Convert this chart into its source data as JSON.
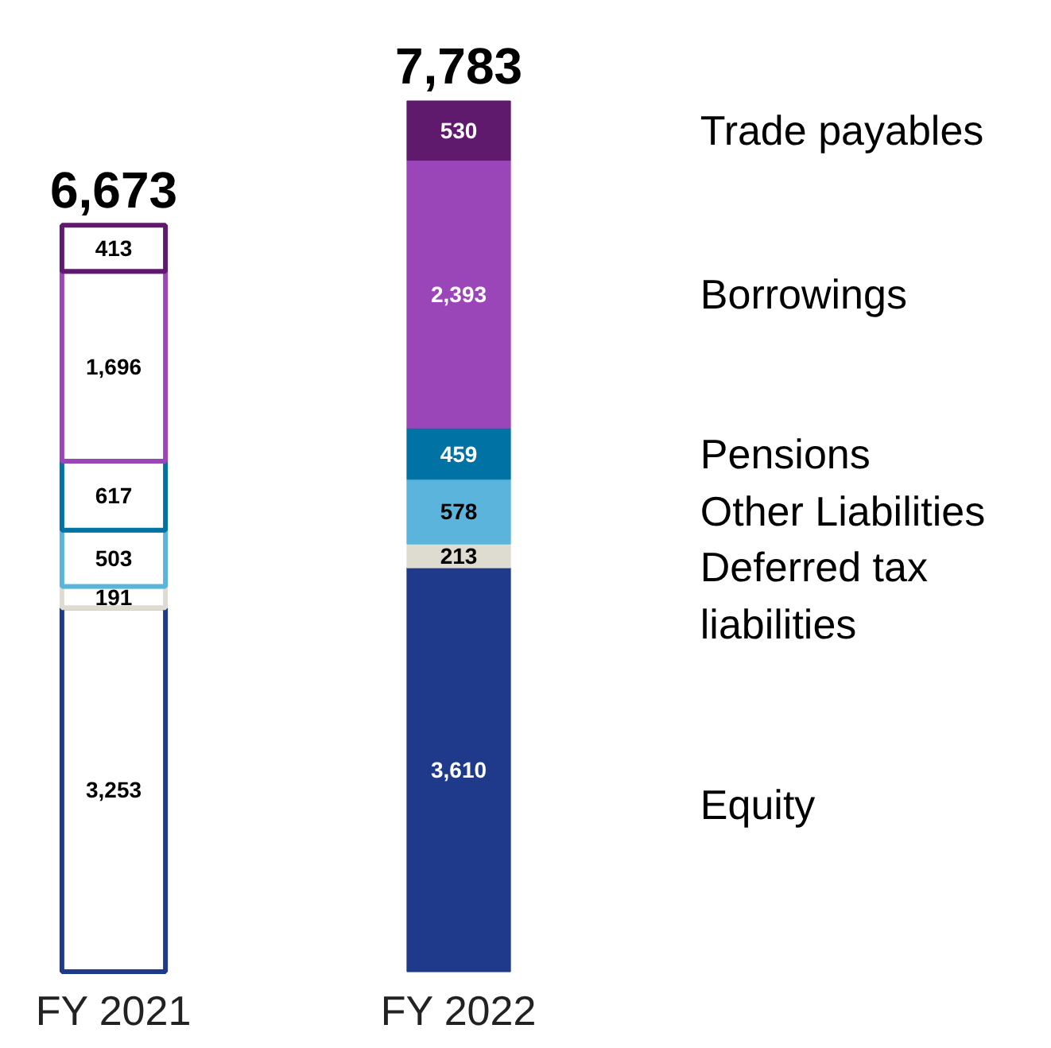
{
  "chart_data": {
    "type": "bar",
    "stacked": true,
    "categories": [
      "FY 2021",
      "FY 2022"
    ],
    "totals": [
      "6,673",
      "7,783"
    ],
    "series": [
      {
        "name": "Equity",
        "color": "#1f3a8a",
        "colors": [
          null,
          "#1f3a8a"
        ],
        "values": [
          3253,
          3610
        ],
        "value_labels": [
          "3,253",
          "3,610"
        ]
      },
      {
        "name": "Deferred tax liabilities",
        "color": "#dedbd0",
        "colors": [
          null,
          "#dedbd0"
        ],
        "values": [
          191,
          213
        ],
        "value_labels": [
          "191",
          "213"
        ]
      },
      {
        "name": "Other Liabilities",
        "color": "#5ab4dc",
        "colors": [
          null,
          "#5ab4dc"
        ],
        "values": [
          503,
          578
        ],
        "value_labels": [
          "503",
          "578"
        ]
      },
      {
        "name": "Pensions",
        "color": "#0072a3",
        "colors": [
          null,
          "#0072a3"
        ],
        "values": [
          617,
          459
        ],
        "value_labels": [
          "617",
          "459"
        ]
      },
      {
        "name": "Borrowings",
        "color": "#9a46b9",
        "colors": [
          null,
          "#9a46b9"
        ],
        "values": [
          1696,
          2393
        ],
        "value_labels": [
          "1,696",
          "2,393"
        ]
      },
      {
        "name": "Trade payables",
        "color": "#5f1a6e",
        "colors": [
          null,
          "#5f1a6e"
        ],
        "values": [
          413,
          530
        ],
        "value_labels": [
          "413",
          "530"
        ]
      }
    ]
  }
}
